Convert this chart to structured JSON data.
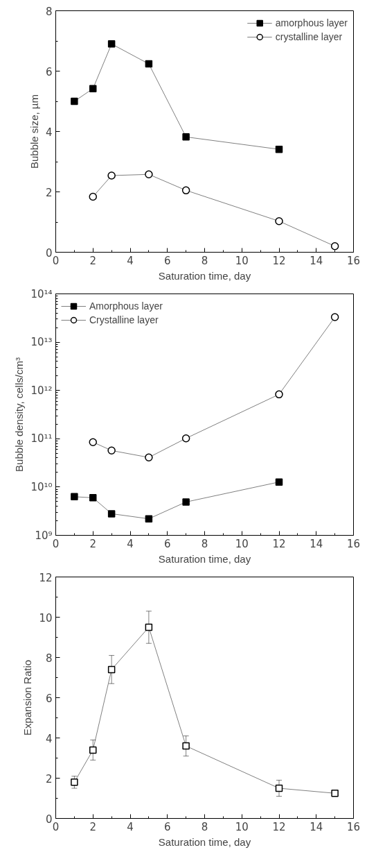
{
  "chart_data": [
    {
      "type": "line",
      "xlabel": "Saturation time, day",
      "ylabel": "Bubble size, µm",
      "xlim": [
        0,
        16
      ],
      "xticks": [
        0,
        2,
        4,
        6,
        8,
        10,
        12,
        14,
        16
      ],
      "ylim": [
        0,
        8
      ],
      "yticks": [
        0,
        2,
        4,
        6,
        8
      ],
      "grid": false,
      "legend": "top right",
      "line_style": "solid",
      "series": [
        {
          "name": "amorphous layer",
          "color": "#000000",
          "marker": "square",
          "x": [
            1,
            2,
            3,
            5,
            7,
            12
          ],
          "values": [
            5.0,
            5.42,
            6.9,
            6.24,
            3.82,
            3.41
          ]
        },
        {
          "name": "crystalline layer",
          "color": "#000000",
          "marker": "circle",
          "x": [
            2,
            3,
            5,
            7,
            12,
            15
          ],
          "values": [
            1.84,
            2.54,
            2.58,
            2.05,
            1.03,
            0.2
          ]
        }
      ]
    },
    {
      "type": "line",
      "xlabel": "Saturation time, day",
      "ylabel": "Bubble density, cells/cm³",
      "log": "y",
      "xlim": [
        0,
        16
      ],
      "xticks": [
        0,
        2,
        4,
        6,
        8,
        10,
        12,
        14,
        16
      ],
      "ylim": [
        1000000000.0,
        100000000000000.0
      ],
      "yticks": [
        {
          "value": 1000000000.0,
          "label": "10⁹"
        },
        {
          "value": 10000000000.0,
          "label": "10¹⁰"
        },
        {
          "value": 100000000000.0,
          "label": "10¹¹"
        },
        {
          "value": 1000000000000.0,
          "label": "10¹²"
        },
        {
          "value": 10000000000000.0,
          "label": "10¹³"
        },
        {
          "value": 100000000000000.0,
          "label": "10¹⁴"
        }
      ],
      "grid": false,
      "legend": "top left",
      "line_style": "solid",
      "series": [
        {
          "name": "Amorphous layer",
          "color": "#000000",
          "marker": "square",
          "x": [
            1,
            2,
            3,
            5,
            7,
            12
          ],
          "values": [
            6300000000.0,
            6000000000.0,
            2800000000.0,
            2200000000.0,
            4900000000.0,
            12700000000.0
          ]
        },
        {
          "name": "Crystalline layer",
          "color": "#000000",
          "marker": "circle",
          "x": [
            2,
            3,
            5,
            7,
            12,
            15
          ],
          "values": [
            85000000000.0,
            57000000000.0,
            41000000000.0,
            102000000000.0,
            830000000000.0,
            33000000000000.0
          ]
        }
      ]
    },
    {
      "type": "line",
      "xlabel": "Saturation time, day",
      "ylabel": "Expansion Ratio",
      "xlim": [
        0,
        16
      ],
      "xticks": [
        0,
        2,
        4,
        6,
        8,
        10,
        12,
        14,
        16
      ],
      "ylim": [
        0,
        12
      ],
      "yticks": [
        0,
        2,
        4,
        6,
        8,
        10,
        12
      ],
      "grid": false,
      "legend": false,
      "line_style": "solid",
      "series": [
        {
          "color": "#000000",
          "marker": "square",
          "x": [
            1,
            2,
            3,
            5,
            7,
            12,
            15
          ],
          "values": [
            1.8,
            3.4,
            7.4,
            9.5,
            3.6,
            1.5,
            1.25
          ],
          "errors": [
            0.3,
            0.5,
            0.7,
            0.8,
            0.5,
            0.4,
            0.1
          ]
        }
      ]
    }
  ]
}
